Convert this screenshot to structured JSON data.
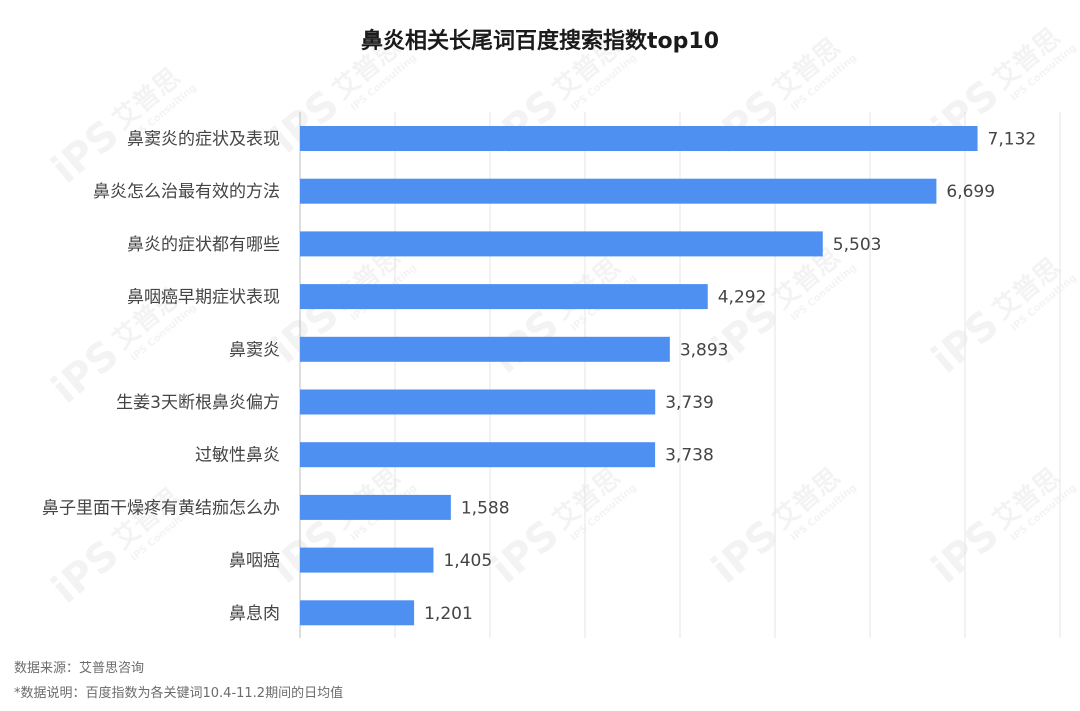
{
  "chart_data": {
    "type": "bar",
    "orientation": "horizontal",
    "title": "鼻炎相关长尾词百度搜索指数top10",
    "categories": [
      "鼻窦炎的症状及表现",
      "鼻炎怎么治最有效的方法",
      "鼻炎的症状都有哪些",
      "鼻咽癌早期症状表现",
      "鼻窦炎",
      "生姜3天断根鼻炎偏方",
      "过敏性鼻炎",
      "鼻子里面干燥疼有黄结痂怎么办",
      "鼻咽癌",
      "鼻息肉"
    ],
    "values": [
      7132,
      6699,
      5503,
      4292,
      3893,
      3739,
      3738,
      1588,
      1405,
      1201
    ],
    "value_labels": [
      "7,132",
      "6,699",
      "5,503",
      "4,292",
      "3,893",
      "3,739",
      "3,738",
      "1,588",
      "1,405",
      "1,201"
    ],
    "xlim": [
      0,
      8000
    ],
    "grid": true,
    "bar_color": "#4e8ff2"
  },
  "footer": {
    "source": "数据来源：艾普思咨询",
    "note": "*数据说明：百度指数为各关键词10.4-11.2期间的日均值"
  },
  "watermark": {
    "mark": "iPS",
    "brand": "艾普思",
    "sub": "IPS Consulting"
  }
}
